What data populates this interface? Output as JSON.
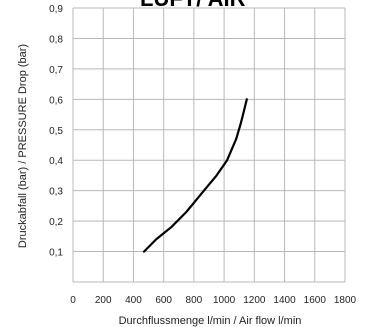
{
  "chart_data": {
    "type": "line",
    "title_fragment": "LUFT/ AIR",
    "xlabel": "Durchflussmenge l/min / Air flow l/min",
    "ylabel": "Druckabfall (bar) / PRESSURE Drop (bar)",
    "xlim": [
      0,
      1800
    ],
    "ylim": [
      0,
      0.9
    ],
    "x_ticks": [
      "0",
      "200",
      "400",
      "600",
      "800",
      "1000",
      "1200",
      "1400",
      "1600",
      "1800"
    ],
    "y_ticks": [
      "0,1",
      "0,2",
      "0,3",
      "0,4",
      "0,5",
      "0,6",
      "0,7",
      "0,8",
      "0,9"
    ],
    "grid": true,
    "series": [
      {
        "x": [
          470,
          550,
          650,
          750,
          850,
          950,
          1020,
          1080,
          1110,
          1130,
          1150
        ],
        "y": [
          0.1,
          0.14,
          0.18,
          0.23,
          0.29,
          0.35,
          0.4,
          0.47,
          0.52,
          0.56,
          0.6
        ],
        "color": "#000000"
      }
    ]
  }
}
